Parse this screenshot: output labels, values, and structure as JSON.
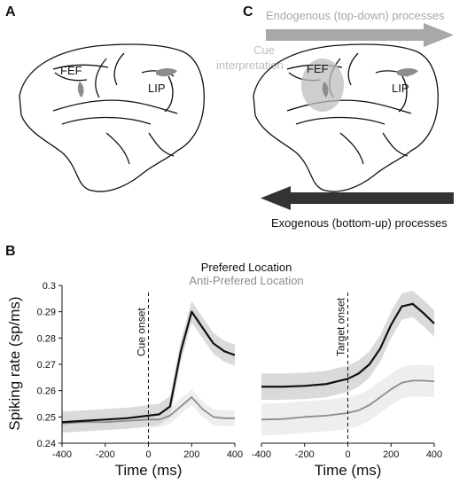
{
  "panels": {
    "a": {
      "letter": "A",
      "labels": {
        "fef": "FEF",
        "lip": "LIP"
      }
    },
    "c": {
      "letter": "C",
      "labels": {
        "fef": "FEF",
        "lip": "LIP"
      },
      "top_down_label": "Endogenous (top-down) processes",
      "bottom_up_label": "Exogenous (bottom-up) processes",
      "cue_label_line1": "Cue",
      "cue_label_line2": "interpretation",
      "colors": {
        "top_down": "#a8a8a8",
        "bottom_up": "#333333",
        "cue": "#bdbdbd"
      }
    },
    "b": {
      "letter": "B",
      "legend": {
        "preferred": "Prefered Location",
        "anti": "Anti-Prefered Location"
      },
      "ylabel": "Spiking rate (sp/ms)",
      "colors": {
        "preferred": "#111111",
        "anti": "#8c8c8c",
        "band_preferred": "#d6d6d6",
        "band_anti": "#ececec"
      }
    }
  },
  "chart_data": [
    {
      "type": "line",
      "event_label": "Cue onset",
      "xlabel": "Time (ms)",
      "ylabel": "Spiking rate (sp/ms)",
      "xlim": [
        -400,
        400
      ],
      "ylim": [
        0.24,
        0.3
      ],
      "xticks": [
        -400,
        -200,
        0,
        200,
        400
      ],
      "yticks": [
        0.24,
        0.25,
        0.26,
        0.27,
        0.28,
        0.29,
        0.3
      ],
      "x": [
        -400,
        -300,
        -200,
        -100,
        0,
        50,
        100,
        150,
        200,
        250,
        300,
        350,
        400
      ],
      "series": [
        {
          "name": "Prefered Location",
          "values": [
            0.248,
            0.2485,
            0.249,
            0.2495,
            0.2505,
            0.251,
            0.254,
            0.275,
            0.29,
            0.284,
            0.278,
            0.275,
            0.2735
          ],
          "band": 0.004
        },
        {
          "name": "Anti-Prefered Location",
          "values": [
            0.2475,
            0.248,
            0.248,
            0.2485,
            0.249,
            0.249,
            0.2505,
            0.254,
            0.2575,
            0.253,
            0.25,
            0.2495,
            0.2495
          ],
          "band": 0.003
        }
      ]
    },
    {
      "type": "line",
      "event_label": "Target onset",
      "xlabel": "Time (ms)",
      "xlim": [
        -400,
        400
      ],
      "ylim": [
        0.24,
        0.3
      ],
      "xticks": [
        -400,
        -200,
        0,
        200,
        400
      ],
      "x": [
        -400,
        -300,
        -200,
        -100,
        0,
        50,
        100,
        150,
        200,
        250,
        300,
        350,
        400
      ],
      "series": [
        {
          "name": "Prefered Location",
          "values": [
            0.2615,
            0.2615,
            0.2618,
            0.2625,
            0.2645,
            0.2665,
            0.27,
            0.276,
            0.285,
            0.292,
            0.293,
            0.2895,
            0.2855
          ],
          "band": 0.005
        },
        {
          "name": "Anti-Prefered Location",
          "values": [
            0.249,
            0.2492,
            0.25,
            0.2505,
            0.2515,
            0.2525,
            0.2545,
            0.2575,
            0.2605,
            0.263,
            0.2638,
            0.2638,
            0.2635
          ],
          "band": 0.006
        }
      ]
    }
  ]
}
